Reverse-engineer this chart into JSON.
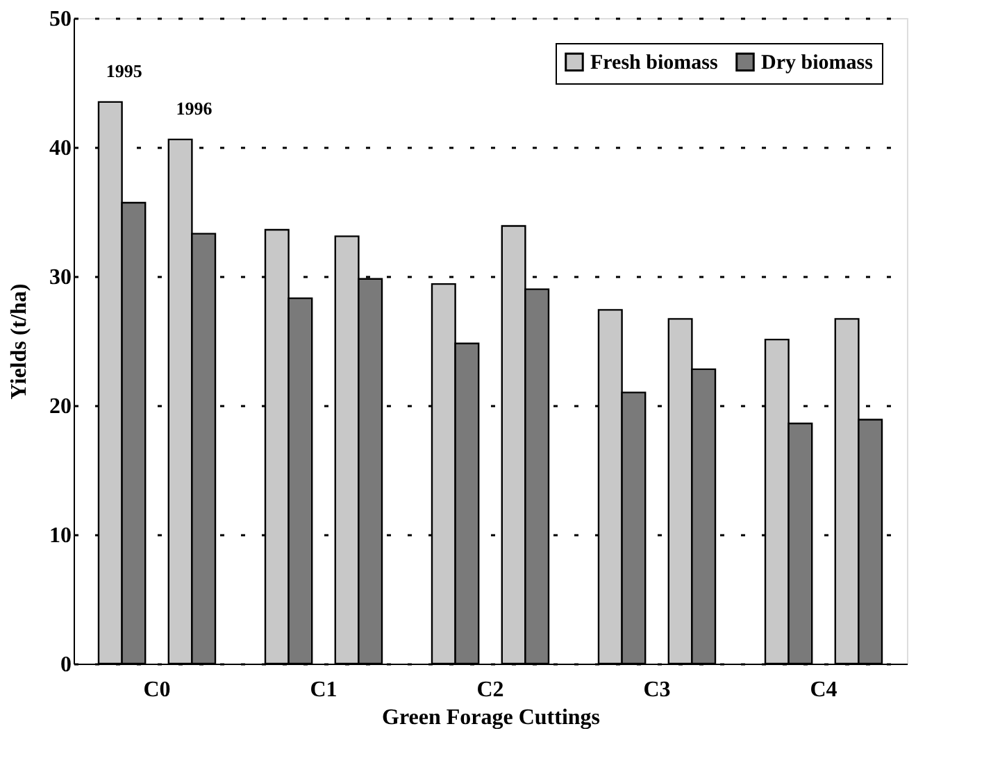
{
  "chart_data": {
    "type": "bar",
    "xlabel": "Green Forage Cuttings",
    "ylabel": "Yields (t/ha)",
    "categories": [
      "C0",
      "C1",
      "C2",
      "C3",
      "C4"
    ],
    "series": [
      {
        "name": "Fresh biomass",
        "color": "#c8c8c8",
        "values": [
          43.5,
          33.6,
          29.4,
          27.4,
          25.1
        ]
      },
      {
        "name": "Dry biomass",
        "color": "#7a7a7a",
        "values": [
          35.7,
          28.3,
          24.8,
          21.0,
          18.6
        ]
      },
      {
        "color": "#c8c8c8",
        "values": [
          40.6,
          33.1,
          33.9,
          26.7,
          26.7
        ]
      },
      {
        "color": "#7a7a7a",
        "values": [
          33.3,
          29.8,
          29.0,
          22.8,
          18.9
        ]
      }
    ],
    "annotations": [
      "1995",
      "1996"
    ],
    "ylim": [
      0,
      50
    ],
    "yticks": [
      0,
      10,
      20,
      30,
      40,
      50
    ],
    "grid": "y",
    "legend": "top right"
  }
}
